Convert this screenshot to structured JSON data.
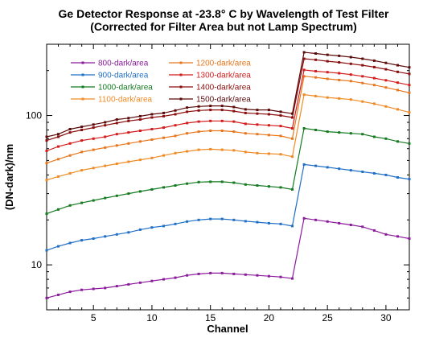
{
  "chart_data": {
    "type": "line",
    "title_line1": "Ge Detector Response at -23.8° C by Wavelength of Test Filter",
    "title_line2": "(Corrected for Filter Area but not Lamp Spectrum)",
    "xlabel": "Channel",
    "ylabel": "(DN-dark)/nm",
    "xlim": [
      1,
      32
    ],
    "ylim": [
      5,
      300
    ],
    "yscale": "log",
    "grid": false,
    "legend_placement": "top-left",
    "x_ticks": [
      5,
      10,
      15,
      20,
      25,
      30
    ],
    "y_ticks": [
      {
        "value": 10,
        "label": "10"
      },
      {
        "value": 100,
        "label": "100"
      }
    ],
    "x": [
      1,
      2,
      3,
      4,
      5,
      6,
      7,
      8,
      9,
      10,
      11,
      12,
      13,
      14,
      15,
      16,
      17,
      18,
      19,
      20,
      21,
      22,
      23,
      24,
      25,
      26,
      27,
      28,
      29,
      30,
      31,
      32
    ],
    "series": [
      {
        "name": "800-dark/area",
        "color": "#8b1a9c",
        "values": [
          6.0,
          6.3,
          6.6,
          6.8,
          6.9,
          7.0,
          7.2,
          7.4,
          7.6,
          7.8,
          8.0,
          8.2,
          8.5,
          8.7,
          8.8,
          8.8,
          8.7,
          8.6,
          8.5,
          8.4,
          8.3,
          8.1,
          20.5,
          20.0,
          19.5,
          19.0,
          18.5,
          18.0,
          17.0,
          16.0,
          15.5,
          15.0
        ]
      },
      {
        "name": "900-dark/area",
        "color": "#1f6fc6",
        "values": [
          12.5,
          13.3,
          14.0,
          14.6,
          15.0,
          15.5,
          16.0,
          16.5,
          17.2,
          17.8,
          18.2,
          18.8,
          19.5,
          20.0,
          20.3,
          20.3,
          20.0,
          19.6,
          19.3,
          19.0,
          18.8,
          18.2,
          47.0,
          46.0,
          45.0,
          44.0,
          43.0,
          42.0,
          41.0,
          40.0,
          38.5,
          37.5
        ]
      },
      {
        "name": "1000-dark/area",
        "color": "#137a1f",
        "values": [
          22.0,
          23.5,
          25.0,
          26.0,
          27.0,
          28.0,
          29.0,
          30.0,
          31.0,
          32.0,
          33.0,
          34.0,
          35.0,
          35.8,
          36.0,
          36.0,
          35.5,
          34.5,
          34.0,
          33.5,
          33.0,
          32.0,
          82.0,
          80.0,
          78.0,
          77.0,
          76.0,
          75.0,
          72.0,
          70.0,
          67.0,
          65.0
        ]
      },
      {
        "name": "1100-dark/area",
        "color": "#f08a24",
        "values": [
          37.0,
          39.0,
          41.0,
          43.0,
          44.5,
          46.0,
          47.5,
          49.0,
          50.5,
          52.0,
          54.0,
          56.0,
          57.5,
          59.0,
          59.5,
          59.0,
          58.5,
          57.0,
          56.0,
          55.5,
          55.0,
          53.0,
          138.0,
          135.0,
          132.0,
          130.0,
          128.0,
          124.0,
          120.0,
          115.0,
          110.0,
          105.0
        ]
      },
      {
        "name": "1200-dark/area",
        "color": "#e8761c",
        "values": [
          48.0,
          51.0,
          54.0,
          57.0,
          59.0,
          61.0,
          63.0,
          65.0,
          67.0,
          69.0,
          71.0,
          73.0,
          76.0,
          78.0,
          79.0,
          79.0,
          78.0,
          76.0,
          75.0,
          74.0,
          73.0,
          70.0,
          183.0,
          180.0,
          176.0,
          173.0,
          170.0,
          165.0,
          160.0,
          154.0,
          148.0,
          142.0
        ]
      },
      {
        "name": "1300-dark/area",
        "color": "#d41c1c",
        "values": [
          58.0,
          62.0,
          65.0,
          68.0,
          70.0,
          72.0,
          75.0,
          77.0,
          79.0,
          81.0,
          83.0,
          86.0,
          89.0,
          91.0,
          92.0,
          92.0,
          91.0,
          88.0,
          87.0,
          86.0,
          85.0,
          82.0,
          202.0,
          198.0,
          195.0,
          192.0,
          188.0,
          183.0,
          178.0,
          172.0,
          166.0,
          160.0
        ]
      },
      {
        "name": "1400-dark/area",
        "color": "#8b0d0d",
        "values": [
          68.0,
          72.0,
          77.0,
          80.0,
          83.0,
          86.0,
          89.0,
          92.0,
          94.0,
          97.0,
          99.0,
          102.0,
          106.0,
          108.0,
          109.0,
          109.0,
          107.0,
          104.0,
          103.0,
          102.0,
          100.0,
          97.0,
          240.0,
          236.0,
          231.0,
          227.0,
          222.0,
          217.0,
          211.0,
          204.0,
          196.0,
          190.0
        ]
      },
      {
        "name": "1500-dark/area",
        "color": "#5c0a0a",
        "values": [
          72.0,
          75.0,
          81.0,
          84.0,
          87.0,
          90.0,
          94.0,
          96.0,
          99.0,
          102.0,
          104.0,
          108.0,
          113.0,
          115.0,
          116.0,
          116.0,
          114.0,
          110.0,
          109.0,
          109.0,
          106.0,
          103.0,
          265.0,
          260.0,
          255.0,
          251.0,
          246.0,
          240.0,
          233.0,
          225.0,
          217.0,
          210.0
        ]
      }
    ]
  }
}
